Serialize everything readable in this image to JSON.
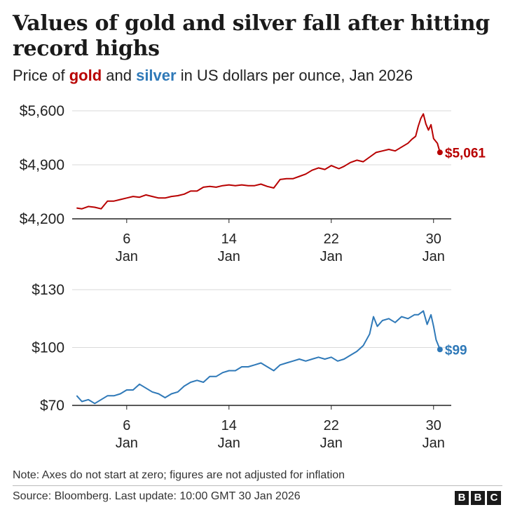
{
  "header": {
    "title": "Values of gold and silver fall after hitting record highs",
    "subtitle_pre": "Price of ",
    "subtitle_gold": "gold",
    "subtitle_and": " and ",
    "subtitle_silver": "silver",
    "subtitle_post": " in US dollars per ounce, Jan 2026"
  },
  "colors": {
    "gold": "#b80000",
    "silver": "#2f79b8",
    "grid": "#d9d9d9",
    "axis": "#222222"
  },
  "chart_data": [
    {
      "type": "line",
      "series": [
        {
          "name": "gold",
          "color": "#b80000",
          "x": [
            2.1,
            2.5,
            3.0,
            3.5,
            4.0,
            4.5,
            5.0,
            5.5,
            6.0,
            6.5,
            7.0,
            7.5,
            8.0,
            8.5,
            9.0,
            9.5,
            10.0,
            10.5,
            11.0,
            11.5,
            12.0,
            12.5,
            13.0,
            13.5,
            14.0,
            14.5,
            15.0,
            15.5,
            16.0,
            16.5,
            17.0,
            17.5,
            18.0,
            18.5,
            19.0,
            19.5,
            20.0,
            20.5,
            21.0,
            21.5,
            22.0,
            22.3,
            22.6,
            23.0,
            23.5,
            24.0,
            24.5,
            25.0,
            25.5,
            26.0,
            26.5,
            27.0,
            27.5,
            28.0,
            28.3,
            28.6,
            28.8,
            29.0,
            29.2,
            29.4,
            29.6,
            29.8,
            30.0,
            30.3,
            30.5
          ],
          "values": [
            4340,
            4330,
            4360,
            4350,
            4330,
            4430,
            4430,
            4450,
            4470,
            4490,
            4480,
            4510,
            4490,
            4470,
            4470,
            4490,
            4500,
            4520,
            4560,
            4560,
            4610,
            4620,
            4610,
            4630,
            4640,
            4630,
            4640,
            4630,
            4630,
            4650,
            4620,
            4600,
            4710,
            4720,
            4720,
            4750,
            4780,
            4830,
            4860,
            4840,
            4890,
            4870,
            4850,
            4880,
            4930,
            4960,
            4940,
            5000,
            5060,
            5080,
            5100,
            5080,
            5130,
            5180,
            5230,
            5270,
            5400,
            5500,
            5560,
            5430,
            5350,
            5420,
            5240,
            5180,
            5061
          ]
        }
      ],
      "ylim": [
        4200,
        5600
      ],
      "yticks": [
        "$4,200",
        "$4,900",
        "$5,600"
      ],
      "ytick_values": [
        4200,
        4900,
        5600
      ],
      "xlim": [
        1.9,
        31.0
      ],
      "xticks": [
        6,
        14,
        22,
        30
      ],
      "xtick_labels": [
        "6",
        "14",
        "22",
        "30"
      ],
      "xtick_sublabel": "Jan",
      "end_label": "$5,061",
      "grid": true
    },
    {
      "type": "line",
      "series": [
        {
          "name": "silver",
          "color": "#2f79b8",
          "x": [
            2.1,
            2.5,
            3.0,
            3.5,
            4.0,
            4.5,
            5.0,
            5.5,
            6.0,
            6.5,
            7.0,
            7.5,
            8.0,
            8.5,
            9.0,
            9.5,
            10.0,
            10.5,
            11.0,
            11.5,
            12.0,
            12.5,
            13.0,
            13.5,
            14.0,
            14.5,
            15.0,
            15.5,
            16.0,
            16.5,
            17.0,
            17.5,
            18.0,
            18.5,
            19.0,
            19.5,
            20.0,
            20.5,
            21.0,
            21.5,
            22.0,
            22.5,
            23.0,
            23.5,
            24.0,
            24.5,
            25.0,
            25.3,
            25.6,
            26.0,
            26.5,
            27.0,
            27.5,
            28.0,
            28.5,
            28.8,
            29.2,
            29.5,
            29.8,
            30.0,
            30.2,
            30.5
          ],
          "values": [
            75,
            72,
            73,
            71,
            73,
            75,
            75,
            76,
            78,
            78,
            81,
            79,
            77,
            76,
            74,
            76,
            77,
            80,
            82,
            83,
            82,
            85,
            85,
            87,
            88,
            88,
            90,
            90,
            91,
            92,
            90,
            88,
            91,
            92,
            93,
            94,
            93,
            94,
            95,
            94,
            95,
            93,
            94,
            96,
            98,
            101,
            107,
            116,
            111,
            114,
            115,
            113,
            116,
            115,
            117,
            117,
            119,
            112,
            117,
            111,
            104,
            99
          ]
        }
      ],
      "ylim": [
        70,
        130
      ],
      "yticks": [
        "$70",
        "$100",
        "$130"
      ],
      "ytick_values": [
        70,
        100,
        130
      ],
      "xlim": [
        1.9,
        31.0
      ],
      "xticks": [
        6,
        14,
        22,
        30
      ],
      "xtick_labels": [
        "6",
        "14",
        "22",
        "30"
      ],
      "xtick_sublabel": "Jan",
      "end_label": "$99",
      "grid": true
    }
  ],
  "footer": {
    "note": "Note: Axes do not start at zero; figures are not adjusted for inflation",
    "source": "Source: Bloomberg. Last update: 10:00 GMT 30 Jan 2026",
    "logo_letters": [
      "B",
      "B",
      "C"
    ]
  }
}
